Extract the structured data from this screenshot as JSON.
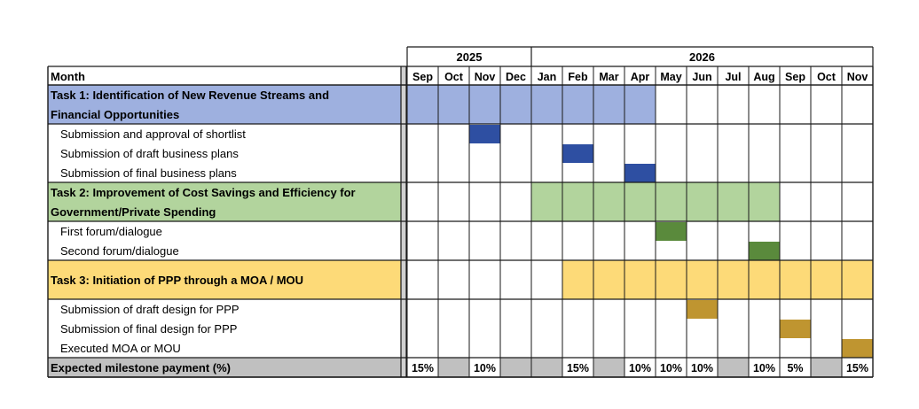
{
  "years": [
    {
      "label": "2025",
      "span": 4
    },
    {
      "label": "2026",
      "span": 11
    }
  ],
  "header": {
    "row_label": "Month",
    "months": [
      "Sep",
      "Oct",
      "Nov",
      "Dec",
      "Jan",
      "Feb",
      "Mar",
      "Apr",
      "May",
      "Jun",
      "Jul",
      "Aug",
      "Sep",
      "Oct",
      "Nov"
    ]
  },
  "tasks": [
    {
      "title_lines": [
        "Task 1: Identification of New Revenue Streams and",
        "Financial Opportunities"
      ],
      "fill": "#9eb0df",
      "milestone_color": "#2e4fa2",
      "active_months": [
        0,
        1,
        2,
        3,
        4,
        5,
        6,
        7
      ],
      "milestones": [
        {
          "label": "Submission and approval of shortlist",
          "month": 2
        },
        {
          "label": "Submission of draft business plans",
          "month": 5
        },
        {
          "label": "Submission of final business plans",
          "month": 7
        }
      ]
    },
    {
      "title_lines": [
        "Task 2: Improvement of Cost Savings and Efficiency for",
        "Government/Private Spending"
      ],
      "fill": "#b2d49d",
      "milestone_color": "#5a8a3c",
      "active_months": [
        4,
        5,
        6,
        7,
        8,
        9,
        10,
        11
      ],
      "milestones": [
        {
          "label": "First forum/dialogue",
          "month": 8
        },
        {
          "label": "Second forum/dialogue",
          "month": 11
        }
      ]
    },
    {
      "title_lines": [
        "Task 3: Initiation of PPP through a MOA / MOU"
      ],
      "fill": "#fdda78",
      "milestone_color": "#bf9530",
      "active_months": [
        5,
        6,
        7,
        8,
        9,
        10,
        11,
        12,
        13,
        14
      ],
      "milestones": [
        {
          "label": "Submission of draft design for PPP",
          "month": 9
        },
        {
          "label": "Submission of final design for PPP",
          "month": 12
        },
        {
          "label": "Executed MOA or MOU",
          "month": 14
        }
      ]
    }
  ],
  "payment": {
    "label": "Expected milestone payment (%)",
    "fill": "#c0c0c0",
    "values": [
      "15%",
      "",
      "10%",
      "",
      "",
      "15%",
      "",
      "10%",
      "10%",
      "10%",
      "",
      "10%",
      "5%",
      "",
      "15%"
    ]
  }
}
